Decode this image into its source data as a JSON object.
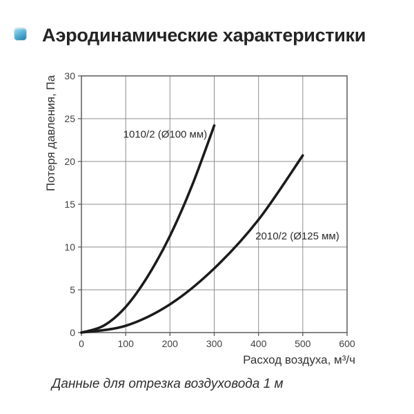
{
  "page": {
    "title": "Аэродинамические характеристики",
    "footnote": "Данные для отрезка воздуховода 1 м",
    "bullet_color_top": "#a9def2",
    "bullet_color_bottom": "#1e7cab"
  },
  "chart_data": {
    "type": "line",
    "title": "",
    "xlabel": "Расход воздуха, м³/ч",
    "ylabel": "Потеря давления, Па",
    "xlim": [
      0,
      600
    ],
    "ylim": [
      0,
      30
    ],
    "xticks": [
      0,
      100,
      200,
      300,
      400,
      500,
      600
    ],
    "yticks": [
      0,
      5,
      10,
      15,
      20,
      25,
      30
    ],
    "grid": true,
    "legend_position": "inline-labels",
    "line_color": "#1b1b1b",
    "grid_color": "#8d8d8d",
    "axis_color": "#5a5a5a",
    "series": [
      {
        "name": "1010/2 (Ø100 мм)",
        "x": [
          0,
          50,
          100,
          150,
          200,
          250,
          300
        ],
        "y": [
          0,
          0.8,
          3.0,
          6.6,
          11.3,
          17.2,
          24.2
        ],
        "label_x": 284,
        "label_y": 22.8,
        "label_anchor": "end"
      },
      {
        "name": "2010/2 (Ø125 мм)",
        "x": [
          0,
          100,
          200,
          300,
          400,
          500
        ],
        "y": [
          0,
          0.8,
          3.3,
          7.5,
          13.2,
          20.7
        ],
        "label_x": 393,
        "label_y": 10.9,
        "label_anchor": "start"
      }
    ]
  }
}
